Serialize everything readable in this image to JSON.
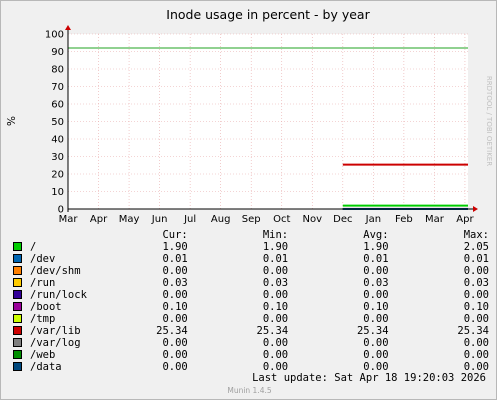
{
  "chart_data": {
    "type": "line",
    "title": "Inode usage in percent - by year",
    "ylabel": "%",
    "xlabel": "",
    "ylim": [
      0,
      100
    ],
    "yticks": [
      0,
      10,
      20,
      30,
      40,
      50,
      60,
      70,
      80,
      90,
      100
    ],
    "xticks": [
      "Mar",
      "Apr",
      "May",
      "Jun",
      "Jul",
      "Aug",
      "Sep",
      "Oct",
      "Nov",
      "Dec",
      "Jan",
      "Feb",
      "Mar",
      "Apr"
    ],
    "xlim": [
      "Mar",
      "Apr (next year)"
    ],
    "grid": true,
    "watermark": "RRDTOOL / TOBI OETIKER",
    "threshold_line": {
      "color": "#22a322",
      "value": 92
    },
    "series": [
      {
        "name": "/",
        "color": "#00cc00",
        "start_month": "Dec",
        "value": 1.9
      },
      {
        "name": "/dev",
        "color": "#0066b3",
        "start_month": "Dec",
        "value": 0.01
      },
      {
        "name": "/dev/shm",
        "color": "#ff8000",
        "start_month": "Dec",
        "value": 0.0
      },
      {
        "name": "/run",
        "color": "#ffcc00",
        "start_month": "Dec",
        "value": 0.03
      },
      {
        "name": "/run/lock",
        "color": "#330099",
        "start_month": "Dec",
        "value": 0.0
      },
      {
        "name": "/boot",
        "color": "#990099",
        "start_month": "Dec",
        "value": 0.1
      },
      {
        "name": "/tmp",
        "color": "#ccff00",
        "start_month": "Dec",
        "value": 0.0
      },
      {
        "name": "/var/lib",
        "color": "#cc0000",
        "start_month": "Dec",
        "value": 25.34
      },
      {
        "name": "/var/log",
        "color": "#808080",
        "start_month": "Dec",
        "value": 0.0
      },
      {
        "name": "/web",
        "color": "#008f00",
        "start_month": "Dec",
        "value": 0.0
      },
      {
        "name": "/data",
        "color": "#00487d",
        "start_month": "Dec",
        "value": 0.0
      }
    ]
  },
  "legend": {
    "headers": {
      "cur": "Cur:",
      "min": "Min:",
      "avg": "Avg:",
      "max": "Max:"
    },
    "rows": [
      {
        "label": "/",
        "color": "#00cc00",
        "cur": "1.90",
        "min": "1.90",
        "avg": "1.90",
        "max": "2.05"
      },
      {
        "label": "/dev",
        "color": "#0066b3",
        "cur": "0.01",
        "min": "0.01",
        "avg": "0.01",
        "max": "0.01"
      },
      {
        "label": "/dev/shm",
        "color": "#ff8000",
        "cur": "0.00",
        "min": "0.00",
        "avg": "0.00",
        "max": "0.00"
      },
      {
        "label": "/run",
        "color": "#ffcc00",
        "cur": "0.03",
        "min": "0.03",
        "avg": "0.03",
        "max": "0.03"
      },
      {
        "label": "/run/lock",
        "color": "#330099",
        "cur": "0.00",
        "min": "0.00",
        "avg": "0.00",
        "max": "0.00"
      },
      {
        "label": "/boot",
        "color": "#990099",
        "cur": "0.10",
        "min": "0.10",
        "avg": "0.10",
        "max": "0.10"
      },
      {
        "label": "/tmp",
        "color": "#ccff00",
        "cur": "0.00",
        "min": "0.00",
        "avg": "0.00",
        "max": "0.00"
      },
      {
        "label": "/var/lib",
        "color": "#cc0000",
        "cur": "25.34",
        "min": "25.34",
        "avg": "25.34",
        "max": "25.34"
      },
      {
        "label": "/var/log",
        "color": "#808080",
        "cur": "0.00",
        "min": "0.00",
        "avg": "0.00",
        "max": "0.00"
      },
      {
        "label": "/web",
        "color": "#008f00",
        "cur": "0.00",
        "min": "0.00",
        "avg": "0.00",
        "max": "0.00"
      },
      {
        "label": "/data",
        "color": "#00487d",
        "cur": "0.00",
        "min": "0.00",
        "avg": "0.00",
        "max": "0.00"
      }
    ]
  },
  "footer": {
    "last_update": "Last update:  Sat Apr 18 19:20:03 2026",
    "version": "Munin 1.4.5"
  }
}
